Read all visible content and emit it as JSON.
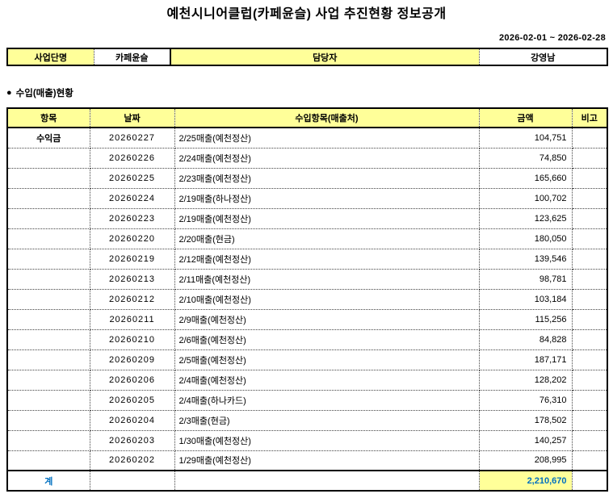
{
  "page": {
    "title": "예천시니어클럽(카페윤슬) 사업 추진현황 정보공개",
    "date_range": "2026-02-01 ~ 2026-02-28"
  },
  "info_table": {
    "labels": [
      "사업단명",
      "담당자"
    ],
    "values": [
      "카페윤슬",
      "강영남"
    ]
  },
  "section": {
    "bullet": "●",
    "title": "수입(매출)현황"
  },
  "main_table": {
    "headers": [
      "항목",
      "날짜",
      "수입항목(매출처)",
      "금액",
      "비고"
    ],
    "item_label": "수익금",
    "rows": [
      {
        "date": "20260227",
        "desc": "2/25매출(예천정산)",
        "amount": "104,751",
        "note": ""
      },
      {
        "date": "20260226",
        "desc": "2/24매출(예천정산)",
        "amount": "74,850",
        "note": ""
      },
      {
        "date": "20260225",
        "desc": "2/23매출(예천정산)",
        "amount": "165,660",
        "note": ""
      },
      {
        "date": "20260224",
        "desc": "2/19매출(하나정산)",
        "amount": "100,702",
        "note": ""
      },
      {
        "date": "20260223",
        "desc": "2/19매출(예천정산)",
        "amount": "123,625",
        "note": ""
      },
      {
        "date": "20260220",
        "desc": "2/20매출(현금)",
        "amount": "180,050",
        "note": ""
      },
      {
        "date": "20260219",
        "desc": "2/12매출(예천정산)",
        "amount": "139,546",
        "note": ""
      },
      {
        "date": "20260213",
        "desc": "2/11매출(예천정산)",
        "amount": "98,781",
        "note": ""
      },
      {
        "date": "20260212",
        "desc": "2/10매출(예천정산)",
        "amount": "103,184",
        "note": ""
      },
      {
        "date": "20260211",
        "desc": "2/9매출(예천정산)",
        "amount": "115,256",
        "note": ""
      },
      {
        "date": "20260210",
        "desc": "2/6매출(예천정산)",
        "amount": "84,828",
        "note": ""
      },
      {
        "date": "20260209",
        "desc": "2/5매출(예천정산)",
        "amount": "187,171",
        "note": ""
      },
      {
        "date": "20260206",
        "desc": "2/4매출(예천정산)",
        "amount": "128,202",
        "note": ""
      },
      {
        "date": "20260205",
        "desc": "2/4매출(하나카드)",
        "amount": "76,310",
        "note": ""
      },
      {
        "date": "20260204",
        "desc": "2/3매출(현금)",
        "amount": "178,502",
        "note": ""
      },
      {
        "date": "20260203",
        "desc": "1/30매출(예천정산)",
        "amount": "140,257",
        "note": ""
      },
      {
        "date": "20260202",
        "desc": "1/29매출(예천정산)",
        "amount": "208,995",
        "note": ""
      }
    ],
    "total": {
      "label": "계",
      "amount": "2,210,670"
    }
  },
  "colors": {
    "header_bg": "#FFFF99",
    "total_accent": "#0070C0"
  }
}
